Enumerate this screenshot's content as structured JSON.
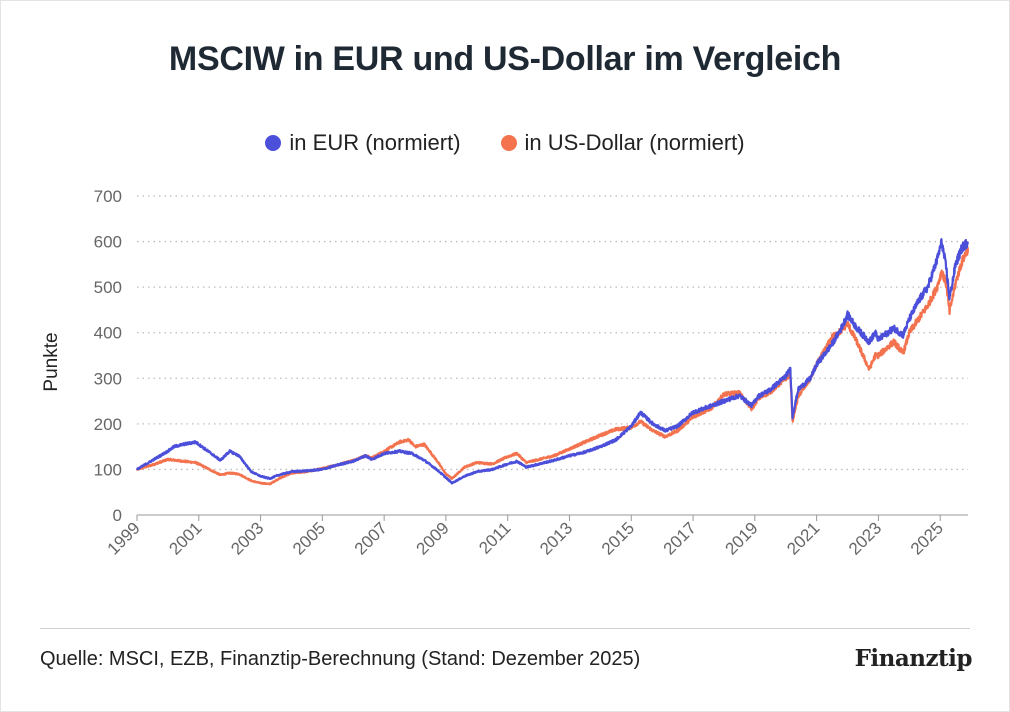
{
  "title": "MSCIW in EUR und US-Dollar im Vergleich",
  "source": "Quelle: MSCI, EZB, Finanztip-Berechnung (Stand: Dezember 2025)",
  "logo": "Finanztip",
  "legend": [
    {
      "label": "in EUR (normiert)",
      "color": "#4b4fd9"
    },
    {
      "label": "in US-Dollar (normiert)",
      "color": "#f4734f"
    }
  ],
  "chart_data": {
    "type": "line",
    "title": "MSCIW in EUR und US-Dollar im Vergleich",
    "xlabel": "",
    "ylabel": "Punkte",
    "xlim": [
      1999,
      2025.9
    ],
    "ylim": [
      0,
      700
    ],
    "y_ticks": [
      0,
      100,
      200,
      300,
      400,
      500,
      600,
      700
    ],
    "x_ticks": [
      "1999",
      "2001",
      "2003",
      "2005",
      "2007",
      "2009",
      "2011",
      "2013",
      "2015",
      "2017",
      "2019",
      "2021",
      "2023",
      "2025"
    ],
    "grid": "horizontal-dotted",
    "legend_position": "top-center",
    "series": [
      {
        "name": "in EUR (normiert)",
        "color": "#4b4fd9",
        "points": [
          [
            1999.0,
            100
          ],
          [
            1999.5,
            120
          ],
          [
            2000.0,
            140
          ],
          [
            2000.2,
            150
          ],
          [
            2000.5,
            155
          ],
          [
            2000.9,
            160
          ],
          [
            2001.2,
            145
          ],
          [
            2001.7,
            120
          ],
          [
            2002.0,
            140
          ],
          [
            2002.3,
            130
          ],
          [
            2002.7,
            95
          ],
          [
            2003.0,
            85
          ],
          [
            2003.3,
            80
          ],
          [
            2003.6,
            88
          ],
          [
            2004.0,
            95
          ],
          [
            2004.5,
            97
          ],
          [
            2005.0,
            100
          ],
          [
            2005.5,
            110
          ],
          [
            2006.0,
            118
          ],
          [
            2006.4,
            130
          ],
          [
            2006.6,
            122
          ],
          [
            2007.0,
            135
          ],
          [
            2007.5,
            140
          ],
          [
            2007.9,
            135
          ],
          [
            2008.3,
            120
          ],
          [
            2008.7,
            100
          ],
          [
            2009.0,
            82
          ],
          [
            2009.2,
            70
          ],
          [
            2009.6,
            85
          ],
          [
            2010.0,
            95
          ],
          [
            2010.5,
            100
          ],
          [
            2011.0,
            112
          ],
          [
            2011.3,
            118
          ],
          [
            2011.6,
            105
          ],
          [
            2011.9,
            110
          ],
          [
            2012.5,
            120
          ],
          [
            2013.0,
            130
          ],
          [
            2013.5,
            138
          ],
          [
            2014.0,
            150
          ],
          [
            2014.5,
            165
          ],
          [
            2015.0,
            195
          ],
          [
            2015.3,
            225
          ],
          [
            2015.7,
            200
          ],
          [
            2016.1,
            185
          ],
          [
            2016.5,
            195
          ],
          [
            2017.0,
            225
          ],
          [
            2017.6,
            240
          ],
          [
            2018.0,
            250
          ],
          [
            2018.5,
            262
          ],
          [
            2018.9,
            240
          ],
          [
            2019.1,
            260
          ],
          [
            2019.5,
            275
          ],
          [
            2020.0,
            305
          ],
          [
            2020.15,
            320
          ],
          [
            2020.22,
            215
          ],
          [
            2020.4,
            275
          ],
          [
            2020.8,
            300
          ],
          [
            2021.0,
            330
          ],
          [
            2021.5,
            375
          ],
          [
            2021.8,
            410
          ],
          [
            2022.0,
            440
          ],
          [
            2022.3,
            410
          ],
          [
            2022.7,
            380
          ],
          [
            2022.9,
            400
          ],
          [
            2023.0,
            385
          ],
          [
            2023.5,
            410
          ],
          [
            2023.8,
            395
          ],
          [
            2024.0,
            430
          ],
          [
            2024.3,
            470
          ],
          [
            2024.6,
            500
          ],
          [
            2024.9,
            560
          ],
          [
            2025.05,
            600
          ],
          [
            2025.2,
            540
          ],
          [
            2025.3,
            475
          ],
          [
            2025.5,
            550
          ],
          [
            2025.7,
            585
          ],
          [
            2025.9,
            600
          ]
        ]
      },
      {
        "name": "in US-Dollar (normiert)",
        "color": "#f4734f",
        "points": [
          [
            1999.0,
            100
          ],
          [
            1999.5,
            110
          ],
          [
            2000.0,
            122
          ],
          [
            2000.5,
            118
          ],
          [
            2000.9,
            115
          ],
          [
            2001.2,
            105
          ],
          [
            2001.7,
            88
          ],
          [
            2002.0,
            92
          ],
          [
            2002.3,
            90
          ],
          [
            2002.7,
            75
          ],
          [
            2003.0,
            70
          ],
          [
            2003.3,
            68
          ],
          [
            2003.6,
            80
          ],
          [
            2004.0,
            92
          ],
          [
            2004.5,
            95
          ],
          [
            2005.0,
            102
          ],
          [
            2005.5,
            110
          ],
          [
            2006.0,
            120
          ],
          [
            2006.4,
            130
          ],
          [
            2006.6,
            125
          ],
          [
            2007.0,
            140
          ],
          [
            2007.5,
            160
          ],
          [
            2007.8,
            165
          ],
          [
            2008.0,
            150
          ],
          [
            2008.3,
            155
          ],
          [
            2008.7,
            120
          ],
          [
            2009.0,
            90
          ],
          [
            2009.2,
            80
          ],
          [
            2009.6,
            105
          ],
          [
            2010.0,
            115
          ],
          [
            2010.5,
            112
          ],
          [
            2011.0,
            128
          ],
          [
            2011.3,
            135
          ],
          [
            2011.6,
            115
          ],
          [
            2011.9,
            120
          ],
          [
            2012.5,
            130
          ],
          [
            2013.0,
            145
          ],
          [
            2013.5,
            160
          ],
          [
            2014.0,
            175
          ],
          [
            2014.5,
            188
          ],
          [
            2015.0,
            192
          ],
          [
            2015.3,
            205
          ],
          [
            2015.7,
            185
          ],
          [
            2016.1,
            172
          ],
          [
            2016.5,
            185
          ],
          [
            2017.0,
            215
          ],
          [
            2017.6,
            235
          ],
          [
            2018.0,
            265
          ],
          [
            2018.5,
            268
          ],
          [
            2018.9,
            232
          ],
          [
            2019.1,
            255
          ],
          [
            2019.5,
            270
          ],
          [
            2020.0,
            300
          ],
          [
            2020.15,
            308
          ],
          [
            2020.22,
            205
          ],
          [
            2020.4,
            260
          ],
          [
            2020.8,
            300
          ],
          [
            2021.0,
            330
          ],
          [
            2021.5,
            390
          ],
          [
            2021.8,
            405
          ],
          [
            2022.0,
            420
          ],
          [
            2022.3,
            380
          ],
          [
            2022.7,
            320
          ],
          [
            2022.9,
            350
          ],
          [
            2023.0,
            350
          ],
          [
            2023.5,
            380
          ],
          [
            2023.8,
            355
          ],
          [
            2024.0,
            400
          ],
          [
            2024.3,
            430
          ],
          [
            2024.6,
            460
          ],
          [
            2024.9,
            500
          ],
          [
            2025.05,
            535
          ],
          [
            2025.2,
            505
          ],
          [
            2025.3,
            445
          ],
          [
            2025.5,
            510
          ],
          [
            2025.7,
            555
          ],
          [
            2025.9,
            585
          ]
        ]
      }
    ]
  }
}
